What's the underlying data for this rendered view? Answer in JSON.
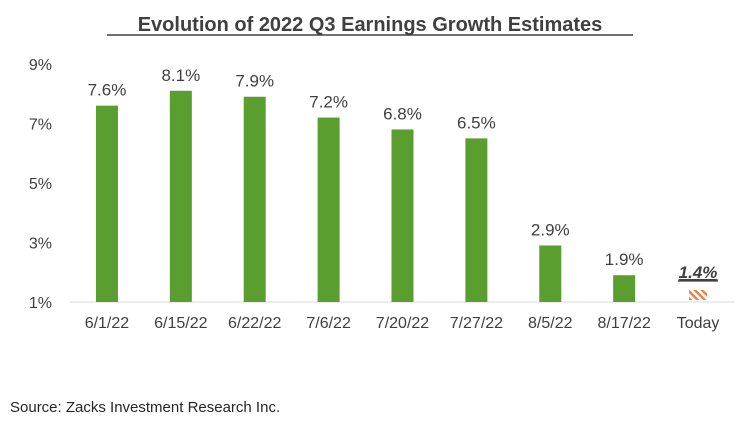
{
  "chart_data": {
    "type": "bar",
    "title": "Evolution of 2022 Q3 Earnings Growth Estimates",
    "categories": [
      "6/1/22",
      "6/15/22",
      "6/22/22",
      "7/6/22",
      "7/20/22",
      "7/27/22",
      "8/5/22",
      "8/17/22",
      "Today"
    ],
    "values": [
      7.6,
      8.1,
      7.9,
      7.2,
      6.8,
      6.5,
      2.9,
      1.9,
      1.4
    ],
    "data_labels": [
      "7.6%",
      "8.1%",
      "7.9%",
      "7.2%",
      "6.8%",
      "6.5%",
      "2.9%",
      "1.9%",
      "1.4%"
    ],
    "ylim": [
      1,
      9
    ],
    "yticks": [
      1,
      3,
      5,
      7,
      9
    ],
    "ytick_labels": [
      "1%",
      "3%",
      "5%",
      "7%",
      "9%"
    ],
    "xlabel": "",
    "ylabel": "",
    "grid": false,
    "legend": "none",
    "bar_color": "#5a9e2f",
    "highlight_color": "#e8834a",
    "highlight_category": "Today",
    "source": "Source: Zacks Investment Research Inc."
  }
}
